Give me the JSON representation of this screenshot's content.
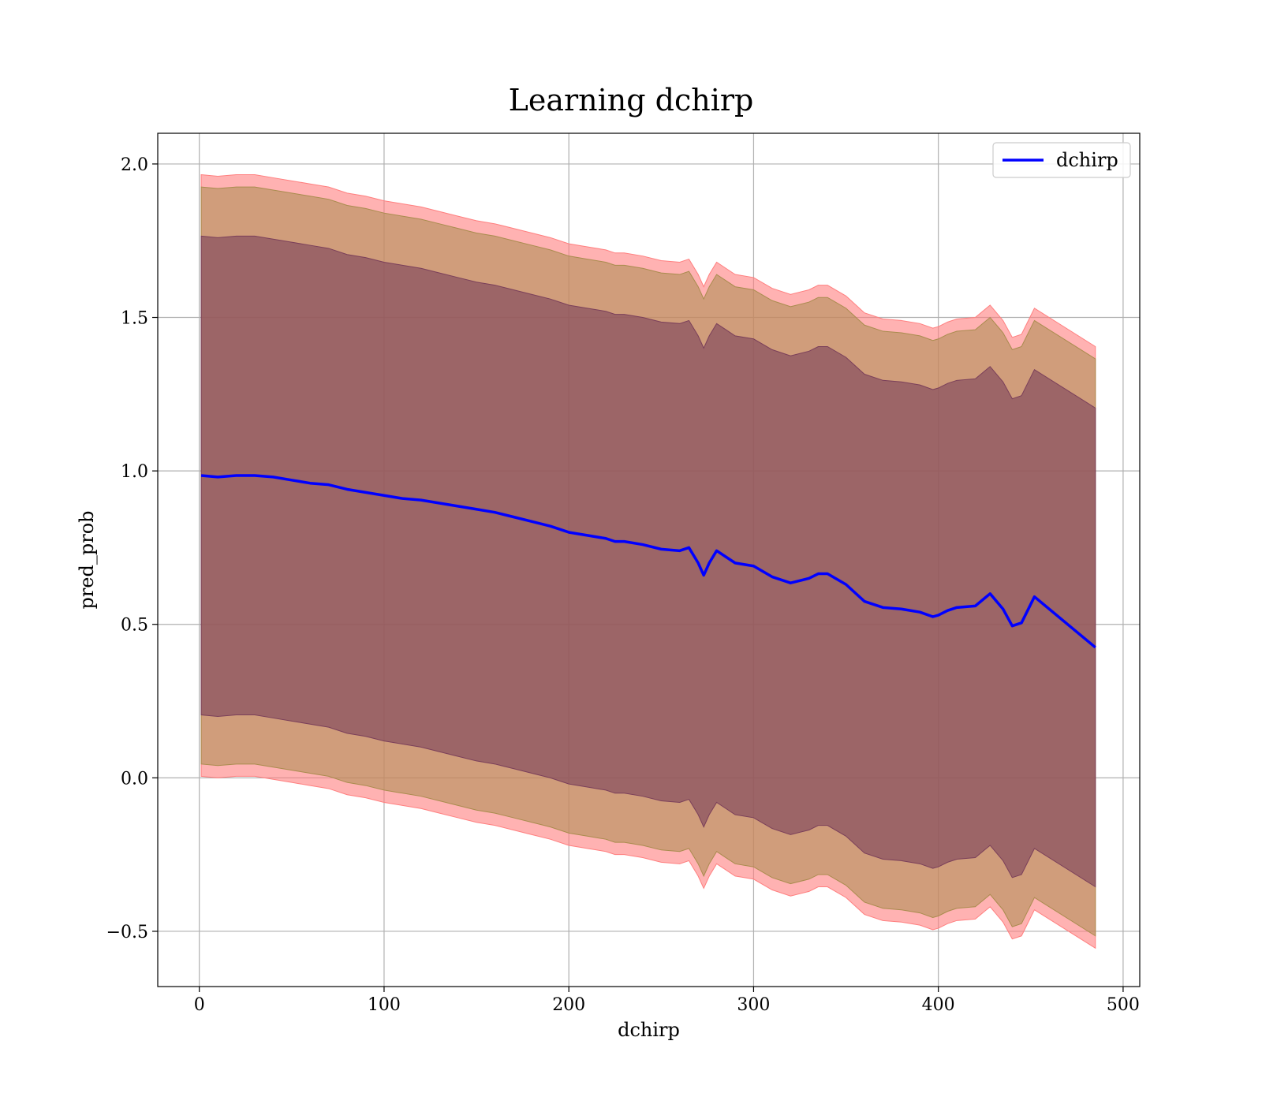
{
  "chart_data": {
    "type": "area",
    "title": "Learning dchirp",
    "xlabel": "dchirp",
    "ylabel": "pred_prob",
    "xlim": [
      -22.5,
      509
    ],
    "ylim": [
      -0.68,
      2.1
    ],
    "x_ticks": [
      0,
      100,
      200,
      300,
      400,
      500
    ],
    "x_tick_labels": [
      "0",
      "100",
      "200",
      "300",
      "400",
      "500"
    ],
    "y_ticks": [
      -0.5,
      0.0,
      0.5,
      1.0,
      1.5,
      2.0
    ],
    "y_tick_labels": [
      "−0.5",
      "0.0",
      "0.5",
      "1.0",
      "1.5",
      "2.0"
    ],
    "grid": true,
    "legend": {
      "position": "top-right",
      "entries": [
        "dchirp"
      ]
    },
    "colors": {
      "mean_line": "#0000ff",
      "band_outer": "#ff7f7f",
      "band_middle": "#a98c4e",
      "band_inner": "#7a3f5a",
      "grid": "#b0b0b0"
    },
    "series": [
      {
        "name": "dchirp",
        "x": [
          1,
          10,
          20,
          30,
          40,
          50,
          60,
          70,
          80,
          90,
          100,
          110,
          120,
          130,
          140,
          150,
          160,
          170,
          180,
          190,
          200,
          210,
          220,
          225,
          230,
          240,
          250,
          260,
          265,
          270,
          273,
          276,
          280,
          285,
          290,
          300,
          310,
          320,
          330,
          335,
          340,
          350,
          360,
          370,
          380,
          390,
          397,
          400,
          405,
          410,
          420,
          425,
          428,
          435,
          440,
          445,
          452,
          485
        ],
        "mean": [
          0.985,
          0.98,
          0.985,
          0.985,
          0.98,
          0.97,
          0.96,
          0.955,
          0.94,
          0.93,
          0.92,
          0.91,
          0.905,
          0.895,
          0.885,
          0.875,
          0.865,
          0.85,
          0.835,
          0.82,
          0.8,
          0.79,
          0.78,
          0.77,
          0.77,
          0.76,
          0.745,
          0.74,
          0.75,
          0.7,
          0.66,
          0.7,
          0.74,
          0.72,
          0.7,
          0.69,
          0.655,
          0.635,
          0.65,
          0.665,
          0.665,
          0.63,
          0.575,
          0.555,
          0.55,
          0.54,
          0.525,
          0.53,
          0.545,
          0.555,
          0.56,
          0.585,
          0.6,
          0.55,
          0.495,
          0.505,
          0.59,
          0.425
        ],
        "band_outer_upper": [
          1.965,
          1.96,
          1.965,
          1.965,
          1.955,
          1.945,
          1.935,
          1.925,
          1.905,
          1.895,
          1.88,
          1.87,
          1.86,
          1.845,
          1.83,
          1.815,
          1.805,
          1.79,
          1.775,
          1.76,
          1.74,
          1.73,
          1.72,
          1.71,
          1.71,
          1.7,
          1.685,
          1.68,
          1.69,
          1.64,
          1.6,
          1.64,
          1.68,
          1.66,
          1.64,
          1.63,
          1.595,
          1.575,
          1.59,
          1.605,
          1.605,
          1.57,
          1.515,
          1.495,
          1.49,
          1.48,
          1.465,
          1.47,
          1.485,
          1.495,
          1.5,
          1.525,
          1.54,
          1.49,
          1.435,
          1.445,
          1.53,
          1.405
        ],
        "band_middle_upper": [
          1.925,
          1.92,
          1.925,
          1.925,
          1.915,
          1.905,
          1.895,
          1.885,
          1.865,
          1.855,
          1.84,
          1.83,
          1.82,
          1.805,
          1.79,
          1.775,
          1.765,
          1.75,
          1.735,
          1.72,
          1.7,
          1.69,
          1.68,
          1.67,
          1.67,
          1.66,
          1.645,
          1.64,
          1.65,
          1.6,
          1.56,
          1.6,
          1.64,
          1.62,
          1.6,
          1.59,
          1.555,
          1.535,
          1.55,
          1.565,
          1.565,
          1.53,
          1.475,
          1.455,
          1.45,
          1.44,
          1.425,
          1.43,
          1.445,
          1.455,
          1.46,
          1.485,
          1.5,
          1.45,
          1.395,
          1.405,
          1.49,
          1.365
        ],
        "band_inner_upper": [
          1.765,
          1.76,
          1.765,
          1.765,
          1.755,
          1.745,
          1.735,
          1.725,
          1.705,
          1.695,
          1.68,
          1.67,
          1.66,
          1.645,
          1.63,
          1.615,
          1.605,
          1.59,
          1.575,
          1.56,
          1.54,
          1.53,
          1.52,
          1.51,
          1.51,
          1.5,
          1.485,
          1.48,
          1.49,
          1.44,
          1.4,
          1.44,
          1.48,
          1.46,
          1.44,
          1.43,
          1.395,
          1.375,
          1.39,
          1.405,
          1.405,
          1.37,
          1.315,
          1.295,
          1.29,
          1.28,
          1.265,
          1.27,
          1.285,
          1.295,
          1.3,
          1.325,
          1.34,
          1.29,
          1.235,
          1.245,
          1.33,
          1.205
        ],
        "band_inner_lower": [
          0.205,
          0.2,
          0.205,
          0.205,
          0.195,
          0.185,
          0.175,
          0.165,
          0.145,
          0.135,
          0.12,
          0.11,
          0.1,
          0.085,
          0.07,
          0.055,
          0.045,
          0.03,
          0.015,
          0.0,
          -0.02,
          -0.03,
          -0.04,
          -0.05,
          -0.05,
          -0.06,
          -0.075,
          -0.08,
          -0.07,
          -0.12,
          -0.16,
          -0.12,
          -0.08,
          -0.1,
          -0.12,
          -0.13,
          -0.165,
          -0.185,
          -0.17,
          -0.155,
          -0.155,
          -0.19,
          -0.245,
          -0.265,
          -0.27,
          -0.28,
          -0.295,
          -0.29,
          -0.275,
          -0.265,
          -0.26,
          -0.235,
          -0.22,
          -0.27,
          -0.325,
          -0.315,
          -0.23,
          -0.355
        ],
        "band_middle_lower": [
          0.045,
          0.04,
          0.045,
          0.045,
          0.035,
          0.025,
          0.015,
          0.005,
          -0.015,
          -0.025,
          -0.04,
          -0.05,
          -0.06,
          -0.075,
          -0.09,
          -0.105,
          -0.115,
          -0.13,
          -0.145,
          -0.16,
          -0.18,
          -0.19,
          -0.2,
          -0.21,
          -0.21,
          -0.22,
          -0.235,
          -0.24,
          -0.23,
          -0.28,
          -0.32,
          -0.28,
          -0.24,
          -0.26,
          -0.28,
          -0.29,
          -0.325,
          -0.345,
          -0.33,
          -0.315,
          -0.315,
          -0.35,
          -0.405,
          -0.425,
          -0.43,
          -0.44,
          -0.455,
          -0.45,
          -0.435,
          -0.425,
          -0.42,
          -0.395,
          -0.38,
          -0.43,
          -0.485,
          -0.475,
          -0.39,
          -0.515
        ],
        "band_outer_lower": [
          0.005,
          0.0,
          0.005,
          0.005,
          -0.005,
          -0.015,
          -0.025,
          -0.035,
          -0.055,
          -0.065,
          -0.08,
          -0.09,
          -0.1,
          -0.115,
          -0.13,
          -0.145,
          -0.155,
          -0.17,
          -0.185,
          -0.2,
          -0.22,
          -0.23,
          -0.24,
          -0.25,
          -0.25,
          -0.26,
          -0.275,
          -0.28,
          -0.27,
          -0.32,
          -0.36,
          -0.32,
          -0.28,
          -0.3,
          -0.32,
          -0.33,
          -0.365,
          -0.385,
          -0.37,
          -0.355,
          -0.355,
          -0.39,
          -0.445,
          -0.465,
          -0.47,
          -0.48,
          -0.495,
          -0.49,
          -0.475,
          -0.465,
          -0.46,
          -0.435,
          -0.42,
          -0.47,
          -0.525,
          -0.515,
          -0.43,
          -0.555
        ]
      }
    ]
  }
}
